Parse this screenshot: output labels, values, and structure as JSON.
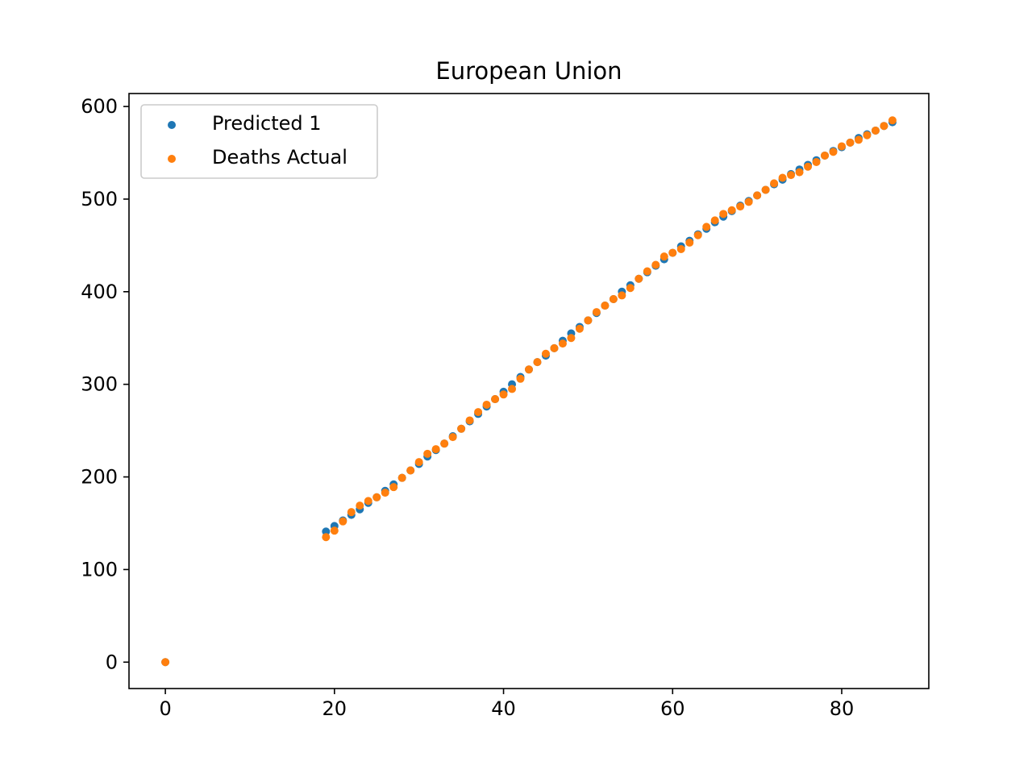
{
  "chart_data": {
    "type": "scatter",
    "title": "European Union",
    "xlabel": "",
    "ylabel": "",
    "xlim": [
      -4.3,
      90.3
    ],
    "ylim": [
      -28.5,
      614
    ],
    "xticks": [
      0,
      20,
      40,
      60,
      80
    ],
    "yticks": [
      0,
      100,
      200,
      300,
      400,
      500,
      600
    ],
    "grid": false,
    "legend_position": "top-left",
    "series": [
      {
        "name": "Predicted 1",
        "color": "#1f77b4",
        "x": [
          0,
          19,
          20,
          21,
          22,
          23,
          24,
          25,
          26,
          27,
          28,
          29,
          30,
          31,
          32,
          33,
          34,
          35,
          36,
          37,
          38,
          39,
          40,
          41,
          42,
          43,
          44,
          45,
          46,
          47,
          48,
          49,
          50,
          51,
          52,
          53,
          54,
          55,
          56,
          57,
          58,
          59,
          60,
          61,
          62,
          63,
          64,
          65,
          66,
          67,
          68,
          69,
          70,
          71,
          72,
          73,
          74,
          75,
          76,
          77,
          78,
          79,
          80,
          81,
          82,
          83,
          84,
          85,
          86
        ],
        "y": [
          0,
          141,
          147,
          153,
          159,
          165,
          172,
          178,
          185,
          192,
          199,
          207,
          214,
          222,
          229,
          236,
          244,
          252,
          260,
          268,
          276,
          284,
          292,
          300,
          308,
          316,
          324,
          331,
          339,
          347,
          355,
          362,
          369,
          377,
          385,
          392,
          400,
          407,
          414,
          421,
          428,
          435,
          442,
          449,
          455,
          462,
          468,
          475,
          481,
          487,
          493,
          498,
          504,
          510,
          516,
          521,
          527,
          532,
          537,
          542,
          547,
          552,
          556,
          561,
          566,
          570,
          574,
          579,
          583
        ]
      },
      {
        "name": "Deaths Actual",
        "color": "#ff7f0e",
        "x": [
          0,
          19,
          20,
          21,
          22,
          23,
          24,
          25,
          26,
          27,
          28,
          29,
          30,
          31,
          32,
          33,
          34,
          35,
          36,
          37,
          38,
          39,
          40,
          41,
          42,
          43,
          44,
          45,
          46,
          47,
          48,
          49,
          50,
          51,
          52,
          53,
          54,
          55,
          56,
          57,
          58,
          59,
          60,
          61,
          62,
          63,
          64,
          65,
          66,
          67,
          68,
          69,
          70,
          71,
          72,
          73,
          74,
          75,
          76,
          77,
          78,
          79,
          80,
          81,
          82,
          83,
          84,
          85,
          86
        ],
        "y": [
          0,
          135,
          142,
          152,
          162,
          169,
          174,
          178,
          183,
          189,
          199,
          207,
          216,
          225,
          230,
          236,
          243,
          252,
          261,
          270,
          278,
          284,
          289,
          295,
          306,
          316,
          324,
          333,
          339,
          344,
          350,
          360,
          369,
          378,
          385,
          392,
          396,
          404,
          414,
          422,
          429,
          438,
          442,
          446,
          453,
          461,
          470,
          477,
          484,
          488,
          492,
          497,
          504,
          510,
          517,
          523,
          526,
          529,
          535,
          540,
          547,
          551,
          557,
          561,
          564,
          569,
          574,
          579,
          585
        ]
      }
    ]
  }
}
